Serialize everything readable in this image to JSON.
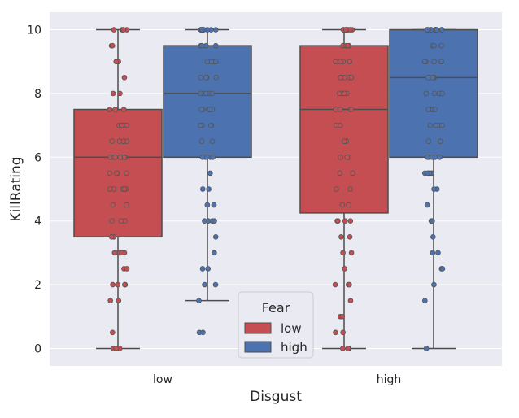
{
  "chart_data": {
    "type": "box",
    "xlabel": "Disgust",
    "ylabel": "KillRating",
    "ylim": [
      -0.55,
      10.55
    ],
    "yticks": [
      0,
      2,
      4,
      6,
      8,
      10
    ],
    "categories": [
      "low",
      "high"
    ],
    "grid": true,
    "legend": {
      "title": "Fear",
      "placement": "bottom-center"
    },
    "series": [
      {
        "name": "low",
        "color": "#c44e52",
        "boxes": [
          {
            "category": "low",
            "whisker_low": 0,
            "q1": 3.5,
            "median": 6.0,
            "q3": 7.5,
            "whisker_high": 10
          },
          {
            "category": "high",
            "whisker_low": 0,
            "q1": 4.25,
            "median": 7.5,
            "q3": 9.5,
            "whisker_high": 10
          }
        ],
        "points": [
          [
            10,
            10,
            10,
            10,
            10,
            9.5,
            9.5,
            9,
            9,
            8.5,
            8,
            8,
            7.5,
            7.5,
            7.5,
            7,
            7,
            7,
            7,
            7,
            6.5,
            6.5,
            6.5,
            6.5,
            6,
            6,
            6,
            6,
            6,
            6,
            6,
            6,
            5.5,
            5.5,
            5.5,
            5.5,
            5,
            5,
            5,
            5,
            5,
            5,
            4.5,
            4.5,
            4,
            4,
            4,
            3.5,
            3.5,
            3,
            3,
            3,
            3,
            3,
            3,
            3,
            2.5,
            2.5,
            2,
            2,
            2,
            2,
            2,
            1.5,
            1.5,
            0.5,
            0,
            0,
            0
          ],
          [
            10,
            10,
            10,
            10,
            10,
            10,
            10,
            10,
            10,
            10,
            10,
            9.5,
            9.5,
            9.5,
            9.5,
            9,
            9,
            9,
            9,
            8.5,
            8.5,
            8.5,
            8.5,
            8.5,
            8,
            8,
            8,
            8,
            7.5,
            7.5,
            7.5,
            7.5,
            7,
            7,
            6.5,
            6.5,
            6,
            6,
            6,
            6,
            5.5,
            5.5,
            5,
            5,
            4.5,
            4.5,
            4,
            4,
            4,
            4,
            4,
            3.5,
            3.5,
            3,
            3,
            2.5,
            2,
            2,
            2,
            1.5,
            1,
            1,
            0.5,
            0.5,
            0,
            0,
            0
          ]
        ]
      },
      {
        "name": "high",
        "color": "#4c72b0",
        "boxes": [
          {
            "category": "low",
            "whisker_low": 1.5,
            "q1": 6.0,
            "median": 8.0,
            "q3": 9.5,
            "whisker_high": 10
          },
          {
            "category": "high",
            "whisker_low": 0,
            "q1": 6.0,
            "median": 8.5,
            "q3": 10.0,
            "whisker_high": 10
          }
        ],
        "points": [
          [
            10,
            10,
            10,
            10,
            10,
            10,
            10,
            10,
            10,
            10,
            10,
            10,
            9.5,
            9.5,
            9.5,
            9.5,
            9,
            9,
            9,
            9,
            8.5,
            8.5,
            8.5,
            8.5,
            8.5,
            8,
            8,
            8,
            8,
            8,
            7.5,
            7.5,
            7.5,
            7.5,
            7.5,
            7,
            7,
            7,
            7,
            6.5,
            6.5,
            6,
            6,
            6,
            6,
            6,
            5.5,
            5,
            5,
            4.5,
            4.5,
            4,
            4,
            4,
            4,
            3.5,
            3,
            2.5,
            2.5,
            2,
            2,
            1.5,
            0.5,
            0.5
          ],
          [
            10,
            10,
            10,
            10,
            10,
            10,
            10,
            10,
            10,
            10,
            10,
            10,
            10,
            10,
            10,
            9.5,
            9.5,
            9.5,
            9,
            9,
            9,
            9,
            9,
            9,
            8.5,
            8.5,
            8.5,
            8.5,
            8.5,
            8.5,
            8,
            8,
            8,
            8,
            8,
            7.5,
            7.5,
            7.5,
            7.5,
            7,
            7,
            7,
            7,
            6.5,
            6.5,
            6.5,
            6,
            6,
            6,
            6,
            6,
            5.5,
            5.5,
            5.5,
            5.5,
            5.5,
            5.5,
            5,
            5,
            4.5,
            4,
            4,
            3.5,
            3,
            3,
            2.5,
            2.5,
            2,
            1.5,
            0
          ]
        ]
      }
    ]
  }
}
